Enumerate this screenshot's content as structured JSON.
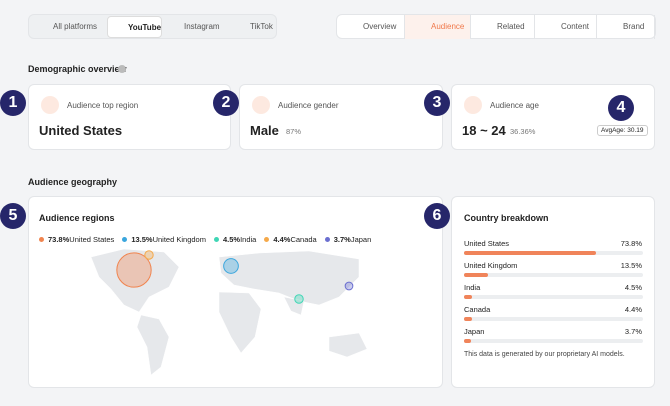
{
  "platform_tabs": [
    "All platforms",
    "YouTube",
    "Instagram",
    "TikTok"
  ],
  "nav_tabs": [
    "Overview",
    "Audience",
    "Related",
    "Content",
    "Brand"
  ],
  "demographic": {
    "title": "Demographic overview",
    "cards": [
      {
        "label": "Audience top region",
        "value": "United States"
      },
      {
        "label": "Audience gender",
        "value": "Male",
        "detail": "87%"
      },
      {
        "label": "Audience age",
        "value": "18 ~ 24",
        "detail": "36.36%",
        "badge": "AvgAge: 30.19"
      }
    ]
  },
  "callouts": [
    "1",
    "2",
    "3",
    "4",
    "5",
    "6"
  ],
  "geography": {
    "title": "Audience geography",
    "regions_title": "Audience regions",
    "breakdown_title": "Country breakdown",
    "countries": [
      {
        "name": "United States",
        "value": 73.8,
        "label": "73.8%",
        "color": "#f0844f"
      },
      {
        "name": "United Kingdom",
        "value": 13.5,
        "label": "13.5%",
        "color": "#3aa6dd"
      },
      {
        "name": "India",
        "value": 4.5,
        "label": "4.5%",
        "color": "#3fd6b5"
      },
      {
        "name": "Canada",
        "value": 4.4,
        "label": "4.4%",
        "color": "#f5a94a"
      },
      {
        "name": "Japan",
        "value": 3.7,
        "label": "3.7%",
        "color": "#6b6fd0"
      }
    ],
    "bar_color": "#f0845a",
    "note": "This data is generated by our proprietary AI models."
  }
}
